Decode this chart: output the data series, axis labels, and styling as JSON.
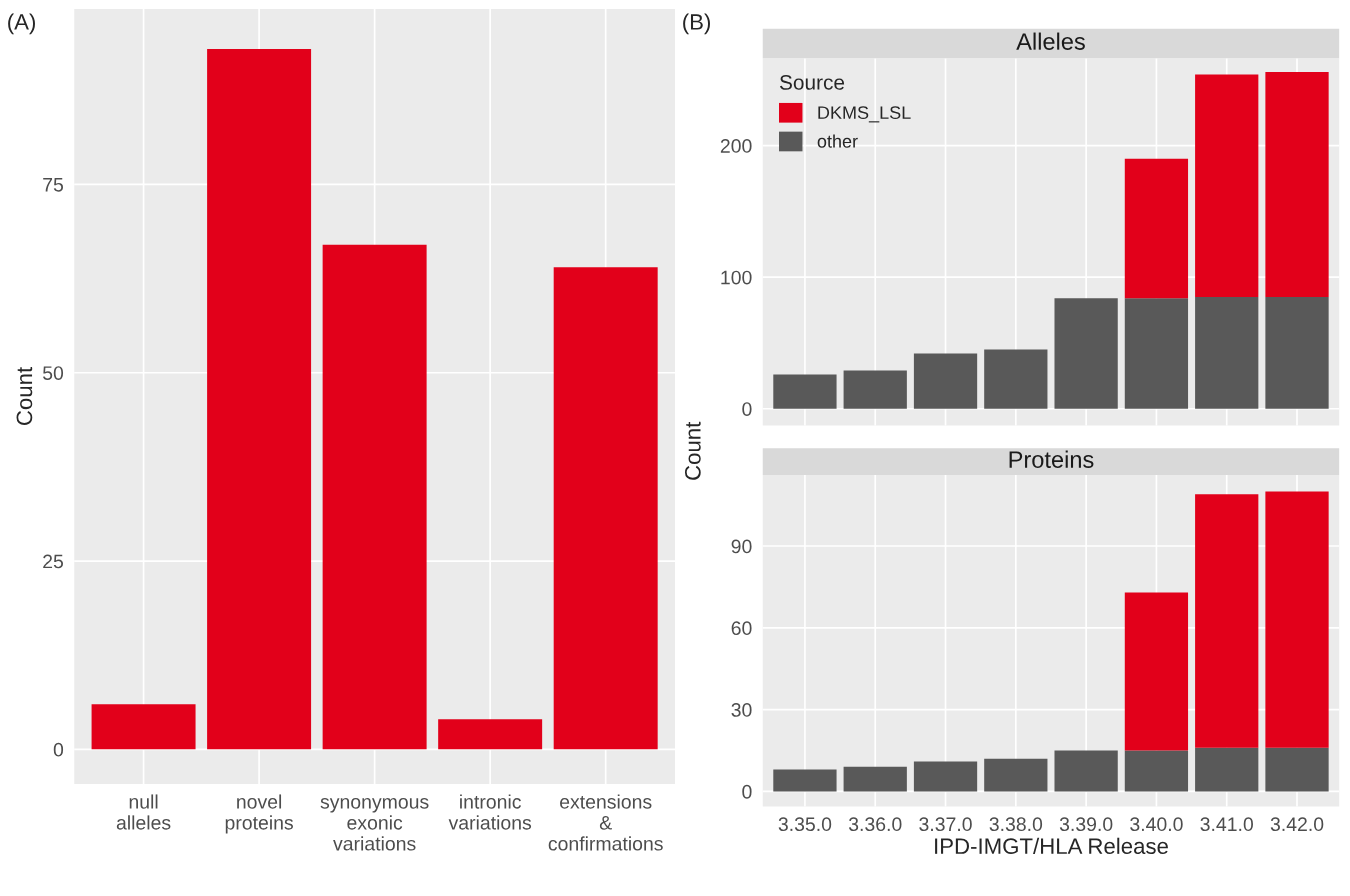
{
  "chart_data": [
    {
      "type": "bar",
      "annotations": [
        "(A)"
      ],
      "ylabel": "Count",
      "categories": [
        "null\nalleles",
        "novel\nproteins",
        "synonymous\nexonic\nvariations",
        "intronic\nvariations",
        "extensions\n&\nconfirmations"
      ],
      "series": [
        {
          "color": "#e2001a",
          "values": [
            6,
            93,
            67,
            4,
            64
          ]
        }
      ],
      "ylim": [
        -4.6,
        98.3
      ],
      "yticks": [
        0,
        25,
        50,
        75
      ],
      "grid": true,
      "legend": false
    },
    {
      "type": "bar",
      "title": "Alleles",
      "annotations": [
        "(B)"
      ],
      "ylabel": "Count",
      "stacked": true,
      "legend": "top left",
      "legend_title": "Source",
      "tick_labels": "y",
      "categories": [
        "3.35.0",
        "3.36.0",
        "3.37.0",
        "3.38.0",
        "3.39.0",
        "3.40.0",
        "3.41.0",
        "3.42.0"
      ],
      "series": [
        {
          "name": "other",
          "color": "#595959",
          "values": [
            26,
            29,
            42,
            45,
            84,
            84,
            85,
            85
          ]
        },
        {
          "name": "DKMS_LSL",
          "color": "#e2001a",
          "values": [
            null,
            null,
            null,
            null,
            null,
            106,
            169,
            171
          ]
        }
      ],
      "ylim": [
        -12.8,
        266.4
      ],
      "yticks": [
        0,
        100,
        200
      ],
      "grid": true
    },
    {
      "type": "bar",
      "title": "Proteins",
      "xlabel": "IPD-IMGT/HLA Release",
      "stacked": true,
      "legend": false,
      "categories": [
        "3.35.0",
        "3.36.0",
        "3.37.0",
        "3.38.0",
        "3.39.0",
        "3.40.0",
        "3.41.0",
        "3.42.0"
      ],
      "series": [
        {
          "color": "#595959",
          "values": [
            8,
            9,
            11,
            12,
            15,
            15,
            16,
            16
          ]
        },
        {
          "color": "#e2001a",
          "values": [
            null,
            null,
            null,
            null,
            null,
            58,
            93,
            94
          ]
        }
      ],
      "ylim": [
        -5.5,
        116.1
      ],
      "yticks": [
        0,
        30,
        60,
        90
      ],
      "grid": true
    }
  ]
}
